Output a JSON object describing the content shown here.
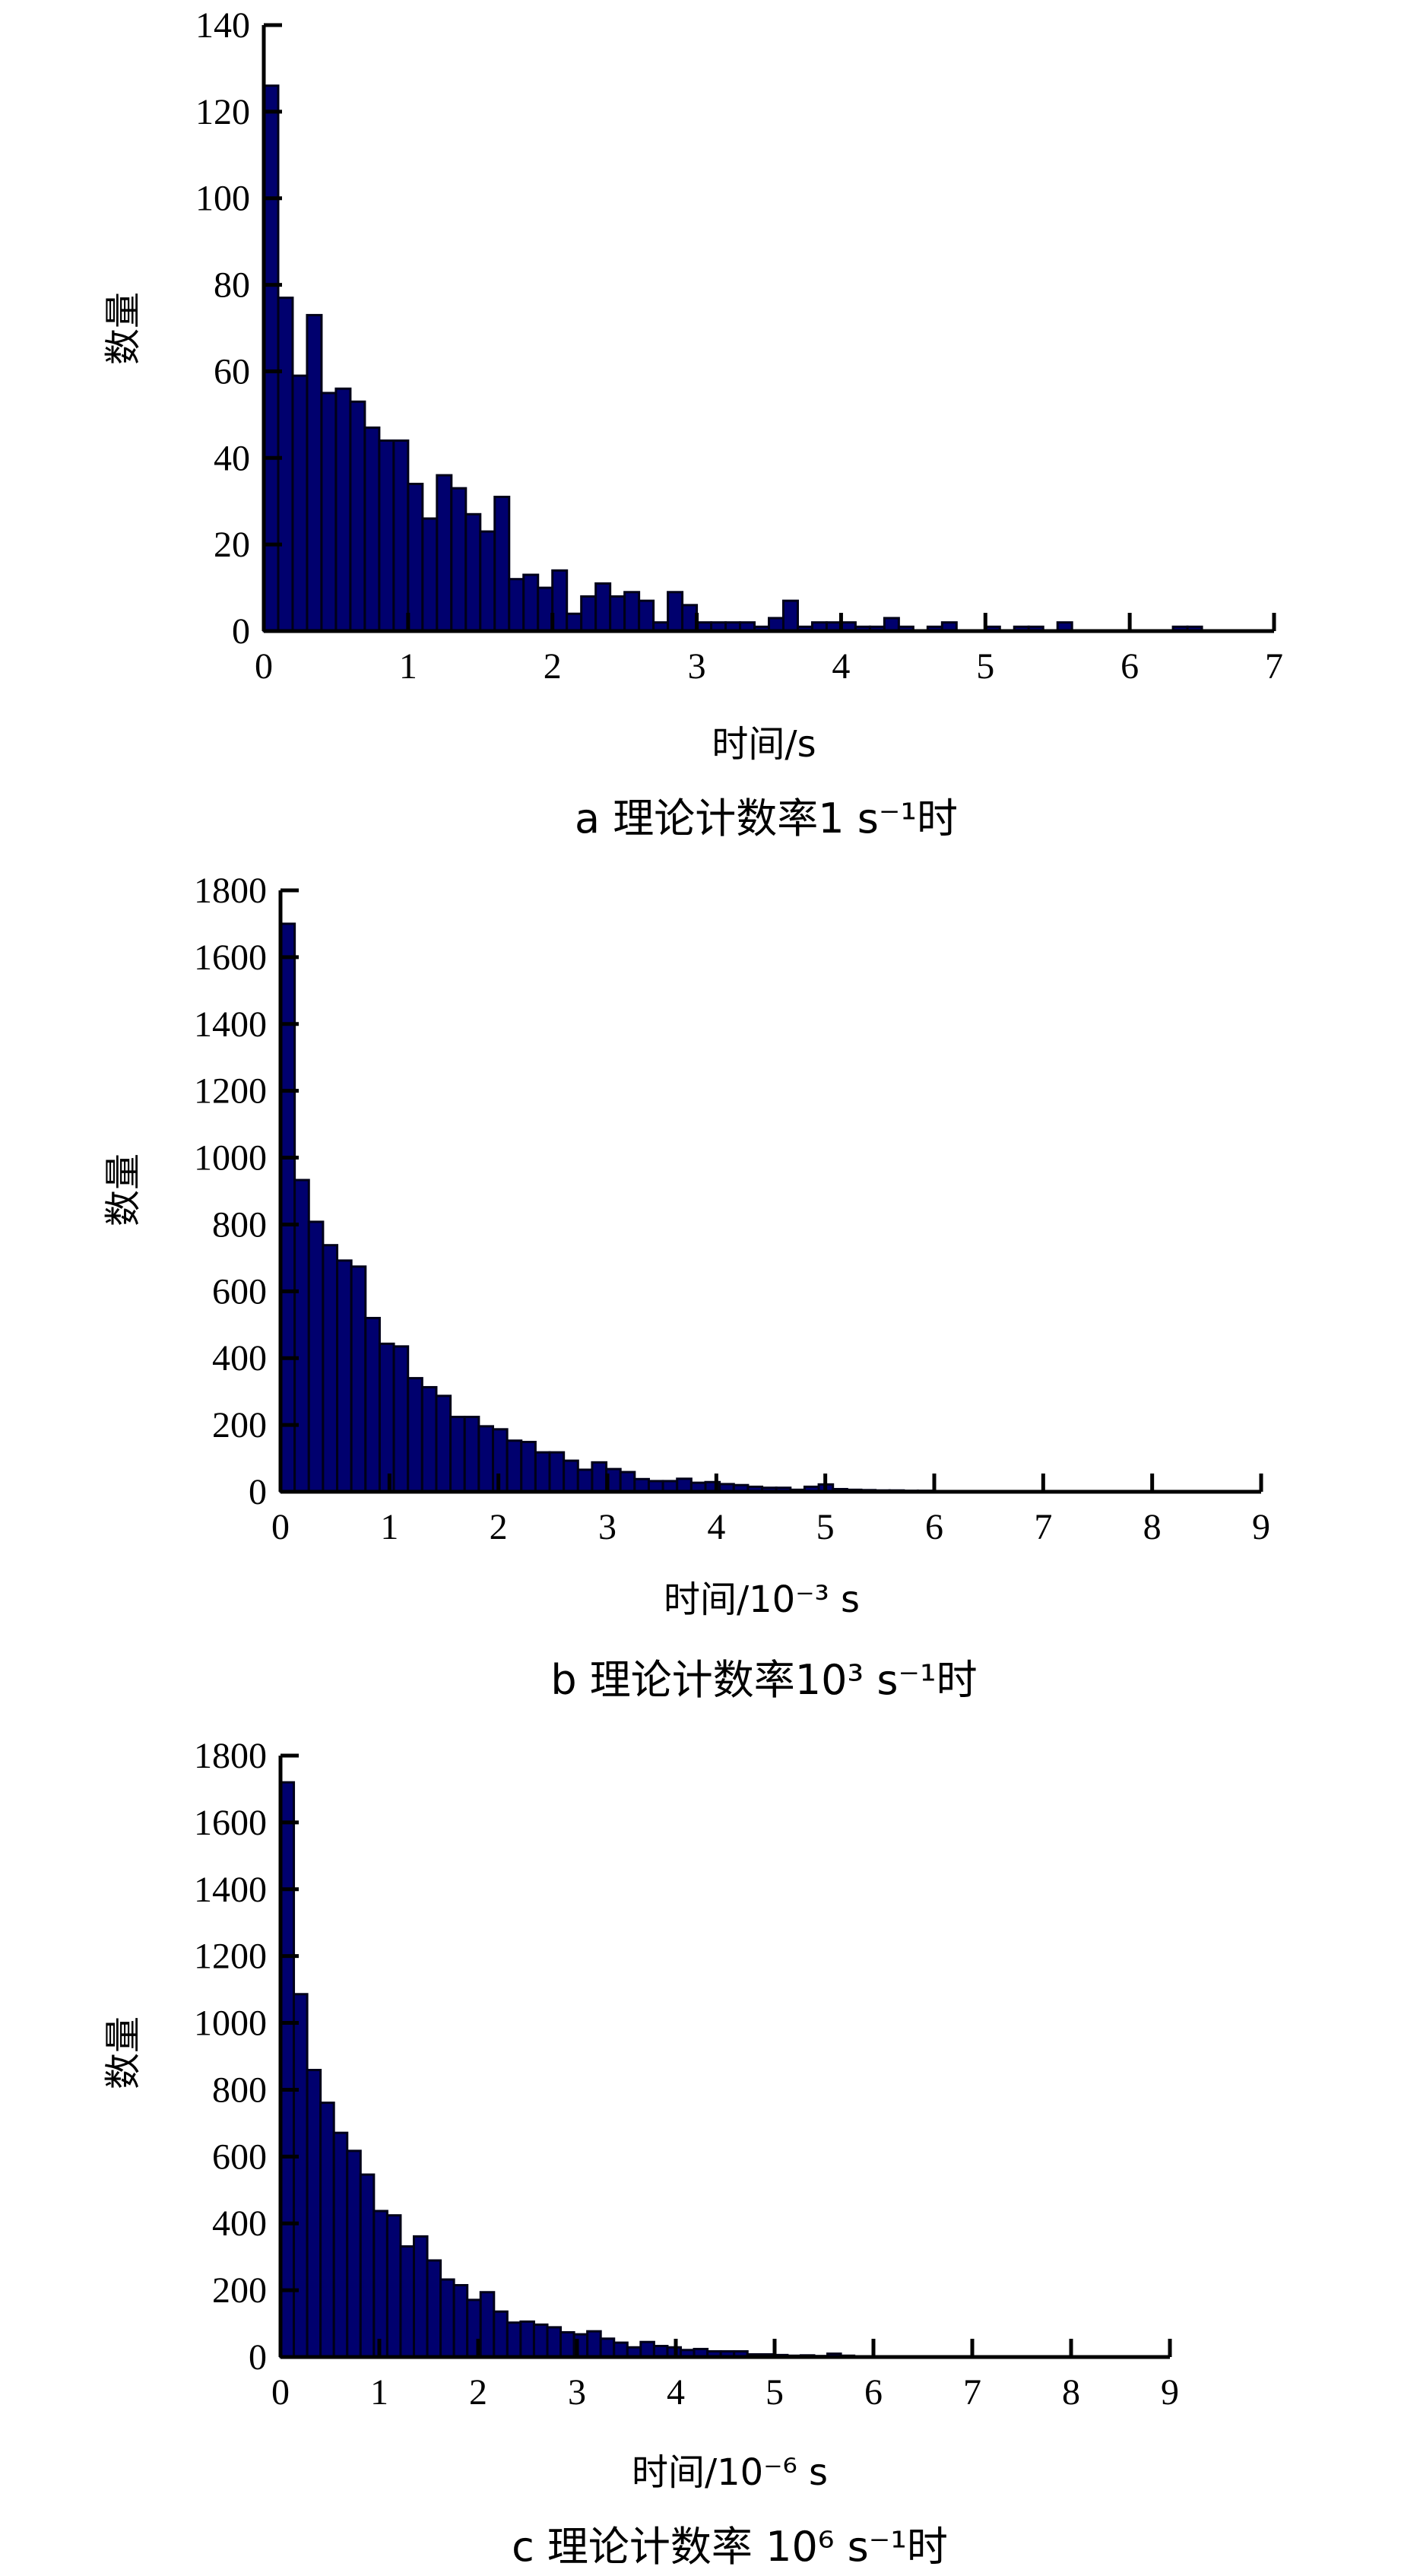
{
  "chart_data": [
    {
      "type": "bar",
      "panel": "a",
      "caption": "a  理论计数率1 s⁻¹时",
      "xlabel": "时间/s",
      "ylabel": "数量",
      "xlim": [
        0,
        7
      ],
      "ylim": [
        0,
        140
      ],
      "xticks": [
        "0",
        "1",
        "2",
        "3",
        "4",
        "5",
        "6",
        "7"
      ],
      "yticks": [
        "0",
        "20",
        "40",
        "60",
        "80",
        "100",
        "120",
        "140"
      ],
      "bin_width": 0.1,
      "values": [
        126,
        77,
        59,
        73,
        55,
        56,
        53,
        47,
        44,
        44,
        34,
        26,
        36,
        33,
        27,
        23,
        31,
        12,
        13,
        10,
        14,
        4,
        8,
        11,
        8,
        9,
        7,
        2,
        9,
        6,
        2,
        2,
        2,
        2,
        1,
        3,
        7,
        1,
        2,
        2,
        2,
        1,
        1,
        3,
        1,
        0,
        1,
        2,
        0,
        0,
        1,
        0,
        1,
        1,
        0,
        2,
        0,
        0,
        0,
        0,
        0,
        0,
        0,
        1,
        1,
        0,
        0,
        0,
        0,
        0
      ],
      "grid": false,
      "bar_color": "#00006e"
    },
    {
      "type": "bar",
      "panel": "b",
      "caption": "b  理论计数率10³ s⁻¹时",
      "xlabel": "时间/10⁻³ s",
      "ylabel": "数量",
      "xlim": [
        0,
        9
      ],
      "ylim": [
        0,
        1800
      ],
      "xticks": [
        "0",
        "1",
        "2",
        "3",
        "4",
        "5",
        "6",
        "7",
        "8",
        "9"
      ],
      "yticks": [
        "0",
        "200",
        "400",
        "600",
        "800",
        "1000",
        "1200",
        "1400",
        "1600",
        "1800"
      ],
      "bin_width": 0.13,
      "values": [
        1700,
        933,
        808,
        738,
        692,
        674,
        520,
        443,
        435,
        340,
        313,
        287,
        224,
        224,
        196,
        187,
        153,
        149,
        118,
        118,
        93,
        66,
        88,
        68,
        59,
        38,
        32,
        32,
        39,
        27,
        29,
        23,
        20,
        15,
        12,
        12,
        6,
        15,
        22,
        8,
        6,
        5,
        4,
        4,
        3,
        3,
        2,
        2,
        2,
        1,
        1,
        1,
        0,
        0,
        0,
        0,
        0,
        0,
        0,
        0,
        0,
        0,
        0,
        0,
        0,
        0,
        0,
        0,
        0,
        0
      ],
      "grid": false,
      "bar_color": "#00006e"
    },
    {
      "type": "bar",
      "panel": "c",
      "caption": "c  理论计数率 10⁶ s⁻¹时",
      "xlabel": "时间/10⁻⁶ s",
      "ylabel": "数量",
      "xlim": [
        0,
        9
      ],
      "ylim": [
        0,
        1800
      ],
      "xticks": [
        "0",
        "1",
        "2",
        "3",
        "4",
        "5",
        "6",
        "7",
        "8",
        "9"
      ],
      "yticks": [
        "0",
        "200",
        "400",
        "600",
        "800",
        "1000",
        "1200",
        "1400",
        "1600",
        "1800"
      ],
      "bin_width": 0.135,
      "values": [
        1720,
        1086,
        859,
        761,
        671,
        617,
        546,
        437,
        424,
        331,
        361,
        289,
        232,
        215,
        171,
        194,
        136,
        103,
        106,
        97,
        89,
        74,
        68,
        77,
        55,
        43,
        29,
        45,
        33,
        29,
        21,
        24,
        17,
        17,
        17,
        8,
        8,
        6,
        4,
        5,
        3,
        10,
        4,
        0,
        0,
        0,
        0,
        0,
        0,
        0,
        0,
        0,
        0,
        0,
        0,
        0,
        0,
        0,
        0,
        0,
        0,
        0,
        0,
        0,
        0,
        0,
        0
      ],
      "grid": false,
      "bar_color": "#00006e"
    }
  ]
}
